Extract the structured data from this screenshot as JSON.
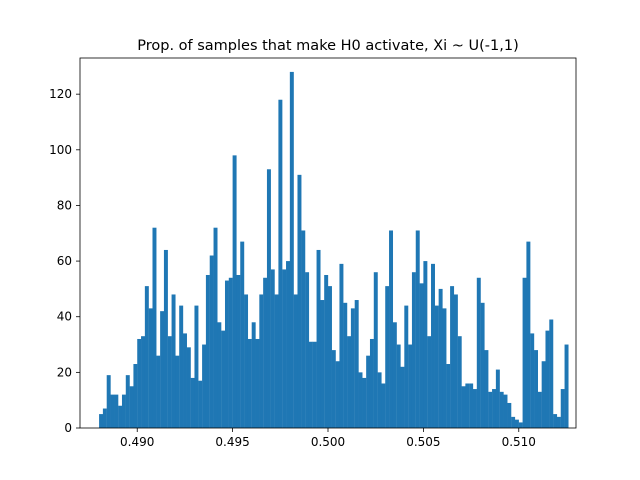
{
  "chart_data": {
    "type": "bar",
    "title": "Prop. of samples that make H0 activate, Xi ~ U(-1,1)",
    "xlabel": "",
    "ylabel": "",
    "xlim": [
      0.487,
      0.513
    ],
    "ylim": [
      0,
      133
    ],
    "xticks": [
      0.49,
      0.495,
      0.5,
      0.505,
      0.51
    ],
    "xtick_labels": [
      "0.490",
      "0.495",
      "0.500",
      "0.505",
      "0.510"
    ],
    "yticks": [
      0,
      20,
      40,
      60,
      80,
      100,
      120
    ],
    "ytick_labels": [
      "0",
      "20",
      "40",
      "60",
      "80",
      "100",
      "120"
    ],
    "grid": false,
    "color": "#1f77b4",
    "bin_start": 0.488,
    "bin_width": 0.0002,
    "values": [
      5,
      7,
      19,
      12,
      12,
      8,
      12,
      19,
      15,
      23,
      32,
      33,
      51,
      43,
      72,
      26,
      42,
      64,
      33,
      48,
      26,
      44,
      34,
      29,
      18,
      44,
      17,
      30,
      55,
      62,
      72,
      38,
      35,
      53,
      54,
      98,
      55,
      67,
      48,
      32,
      38,
      32,
      48,
      54,
      93,
      57,
      48,
      118,
      57,
      60,
      128,
      48,
      91,
      71,
      56,
      31,
      31,
      64,
      46,
      55,
      51,
      28,
      24,
      59,
      45,
      33,
      43,
      46,
      20,
      18,
      26,
      32,
      56,
      20,
      16,
      51,
      71,
      38,
      30,
      22,
      44,
      30,
      56,
      71,
      52,
      60,
      33,
      59,
      44,
      50,
      43,
      23,
      51,
      48,
      33,
      15,
      16,
      16,
      14,
      54,
      45,
      28,
      13,
      14,
      21,
      13,
      12,
      9,
      4,
      3,
      2,
      54,
      67,
      34,
      28,
      13,
      24,
      35,
      39,
      5,
      4,
      14,
      30
    ]
  }
}
